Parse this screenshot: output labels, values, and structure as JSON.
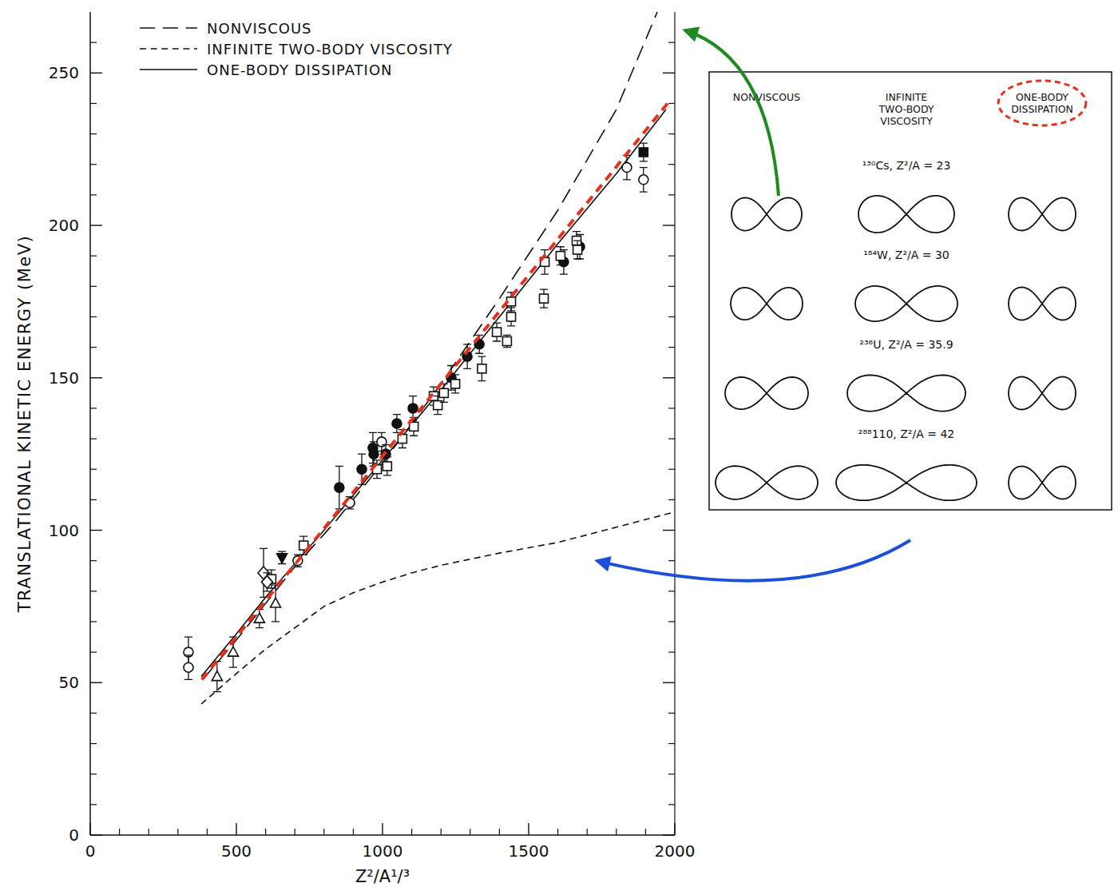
{
  "chart_data": {
    "type": "line",
    "xlabel": "Z²/A¹/³",
    "ylabel": "TRANSLATIONAL KINETIC ENERGY (MeV)",
    "xlim": [
      0,
      2000
    ],
    "ylim": [
      0,
      270
    ],
    "xticks": [
      0,
      500,
      1000,
      1500,
      2000
    ],
    "yticks": [
      0,
      50,
      100,
      150,
      200,
      250
    ],
    "xminorticks": [
      100,
      200,
      300,
      400,
      600,
      700,
      800,
      900,
      1100,
      1200,
      1300,
      1400,
      1600,
      1700,
      1800,
      1900
    ],
    "yminorticks": [
      10,
      20,
      30,
      40,
      60,
      70,
      80,
      90,
      110,
      120,
      130,
      140,
      160,
      170,
      180,
      190,
      210,
      220,
      230,
      240,
      260
    ],
    "grid": false,
    "legend": "upper left",
    "series": [
      {
        "name": "NONVISCOUS",
        "type": "line",
        "line_style": "long-dash",
        "color": "#111111",
        "x": [
          385,
          500,
          600,
          700,
          840,
          1000,
          1200,
          1400,
          1600,
          1800,
          1940
        ],
        "values": [
          51,
          64,
          76,
          88,
          103,
          122,
          148,
          176,
          205,
          238,
          270
        ]
      },
      {
        "name": "INFINITE TWO-BODY VISCOSITY",
        "type": "line",
        "line_style": "dashed",
        "color": "#111111",
        "x": [
          380,
          500,
          600,
          700,
          800,
          900,
          1000,
          1100,
          1200,
          1400,
          1600,
          1800,
          2000
        ],
        "values": [
          43,
          53,
          61,
          68,
          75,
          79.5,
          83,
          86,
          88.5,
          92.5,
          96,
          101,
          106
        ]
      },
      {
        "name": "ONE-BODY DISSIPATION",
        "type": "line",
        "line_style": "solid",
        "color": "#111111",
        "x": [
          380,
          500,
          600,
          800,
          1000,
          1200,
          1400,
          1600,
          1800,
          1970
        ],
        "values": [
          52,
          66,
          78,
          100,
          123,
          146,
          170,
          194,
          217,
          238
        ]
      },
      {
        "type": "scatter",
        "marker": "open-circle",
        "color": "#111111",
        "x": [
          336,
          336,
          710,
          888,
          997,
          1836,
          1893
        ],
        "values": [
          60,
          55,
          90,
          109,
          129,
          219,
          215
        ],
        "errors": [
          5,
          4,
          2,
          2,
          3,
          4,
          4
        ]
      },
      {
        "type": "scatter",
        "marker": "filled-circle",
        "color": "#111111",
        "x": [
          852,
          929,
          967,
          970,
          1011,
          1049,
          1104,
          1235,
          1290,
          1331,
          1620,
          1675
        ],
        "values": [
          114,
          120,
          127,
          125,
          125,
          135,
          140,
          150,
          157,
          161,
          188,
          193
        ],
        "errors": [
          7,
          5,
          5,
          4,
          3,
          3,
          4,
          4,
          4,
          3,
          4,
          4
        ]
      },
      {
        "type": "scatter",
        "marker": "open-square",
        "color": "#111111",
        "x": [
          620,
          730,
          981,
          1016,
          1068,
          1107,
          1175,
          1189,
          1210,
          1249,
          1340,
          1391,
          1426,
          1440,
          1440,
          1552,
          1555,
          1609,
          1664,
          1667
        ],
        "values": [
          84,
          95,
          120,
          121,
          130,
          134,
          144,
          141,
          145,
          148,
          153,
          165,
          162,
          170,
          175,
          176,
          188,
          190,
          195,
          192
        ],
        "errors": [
          3,
          3,
          3,
          3,
          3,
          3,
          3,
          3,
          3,
          3,
          4,
          3,
          2,
          3,
          3,
          3,
          4,
          3,
          3,
          3
        ]
      },
      {
        "type": "scatter",
        "marker": "open-triangle",
        "color": "#111111",
        "x": [
          434,
          489,
          579,
          634
        ],
        "values": [
          52,
          60,
          71,
          76
        ],
        "errors": [
          5,
          5,
          3,
          6
        ]
      },
      {
        "type": "scatter",
        "marker": "open-diamond",
        "color": "#111111",
        "x": [
          593,
          605
        ],
        "values": [
          86,
          83
        ],
        "errors": [
          8,
          3
        ]
      },
      {
        "type": "scatter",
        "marker": "filled-triangle-down",
        "color": "#111111",
        "x": [
          656
        ],
        "values": [
          91
        ],
        "errors": [
          2
        ]
      },
      {
        "type": "scatter",
        "marker": "filled-square",
        "color": "#111111",
        "x": [
          1893
        ],
        "values": [
          224
        ],
        "errors": [
          3
        ]
      },
      {
        "type": "line",
        "line_style": "dashed",
        "color": "#e8301c",
        "x": [
          382,
          1975
        ],
        "values": [
          51,
          240
        ]
      }
    ]
  },
  "inset": {
    "columns": [
      "NONVISCOUS",
      "INFINITE TWO-BODY VISCOSITY",
      "ONE-BODY DISSIPATION"
    ],
    "rows": [
      "¹³⁰Cs, Z²/A = 23",
      "¹⁸⁴W, Z²/A = 30",
      "²³⁶U, Z²/A = 35.9",
      "²⁸⁸110, Z²/A = 42"
    ]
  }
}
